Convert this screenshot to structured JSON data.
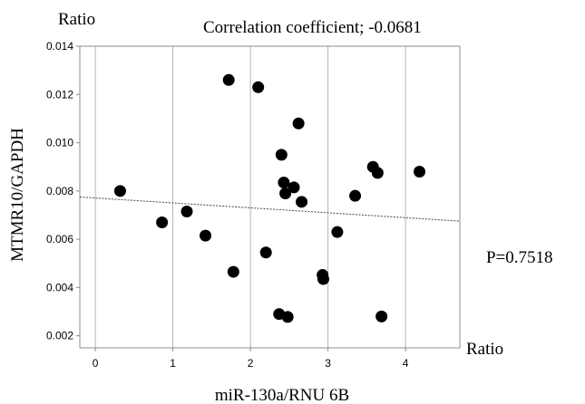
{
  "chart_data": {
    "type": "scatter",
    "title": "Correlation coefficient; -0.0681",
    "xlabel": "miR-130a/RNU 6B",
    "ylabel": "MTMR10/GAPDH",
    "x_unit_label": "Ratio",
    "y_unit_label": "Ratio",
    "annotation": "P=0.7518",
    "xlim": [
      -0.2,
      4.7
    ],
    "ylim": [
      0.0015,
      0.014
    ],
    "x_ticks": [
      "0",
      "1",
      "2",
      "3",
      "4"
    ],
    "y_ticks": [
      "0.002",
      "0.004",
      "0.006",
      "0.008",
      "0.010",
      "0.012",
      "0.014"
    ],
    "grid": "vertical",
    "regression_line": {
      "x": [
        -0.2,
        4.7
      ],
      "y": [
        0.00775,
        0.00675
      ]
    },
    "points": [
      {
        "x": 0.32,
        "y": 0.008
      },
      {
        "x": 0.86,
        "y": 0.0067
      },
      {
        "x": 1.18,
        "y": 0.00715
      },
      {
        "x": 1.42,
        "y": 0.00615
      },
      {
        "x": 1.72,
        "y": 0.0126
      },
      {
        "x": 1.78,
        "y": 0.00465
      },
      {
        "x": 2.1,
        "y": 0.0123
      },
      {
        "x": 2.2,
        "y": 0.00545
      },
      {
        "x": 2.37,
        "y": 0.0029
      },
      {
        "x": 2.4,
        "y": 0.0095
      },
      {
        "x": 2.43,
        "y": 0.00835
      },
      {
        "x": 2.45,
        "y": 0.0079
      },
      {
        "x": 2.48,
        "y": 0.00278
      },
      {
        "x": 2.56,
        "y": 0.00815
      },
      {
        "x": 2.62,
        "y": 0.0108
      },
      {
        "x": 2.66,
        "y": 0.00755
      },
      {
        "x": 2.93,
        "y": 0.00452
      },
      {
        "x": 2.94,
        "y": 0.00435
      },
      {
        "x": 3.12,
        "y": 0.0063
      },
      {
        "x": 3.35,
        "y": 0.0078
      },
      {
        "x": 3.58,
        "y": 0.009
      },
      {
        "x": 3.64,
        "y": 0.00875
      },
      {
        "x": 3.69,
        "y": 0.0028
      },
      {
        "x": 4.18,
        "y": 0.0088
      }
    ]
  }
}
